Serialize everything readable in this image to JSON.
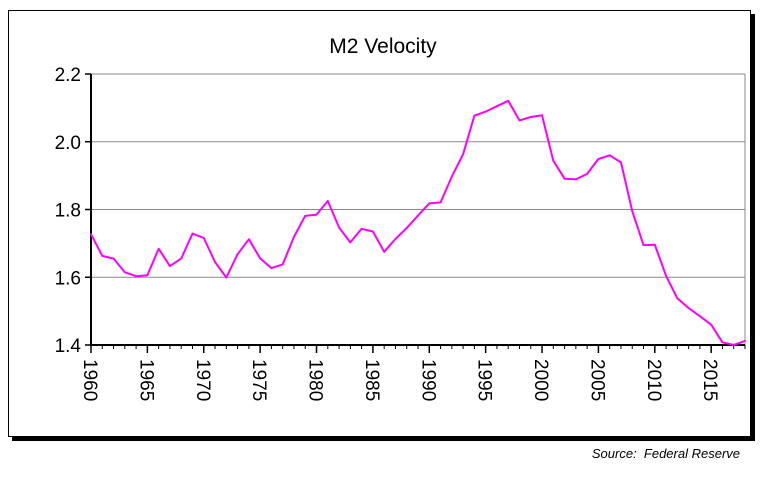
{
  "chart_data": {
    "type": "line",
    "title": "M2 Velocity",
    "xlabel": "",
    "ylabel": "",
    "ylim": [
      1.4,
      2.2
    ],
    "yticks": [
      "1.4",
      "1.6",
      "1.8",
      "2.0",
      "2.2"
    ],
    "xlim": [
      1960,
      2018
    ],
    "xticks": [
      "1960",
      "1965",
      "1970",
      "1975",
      "1980",
      "1985",
      "1990",
      "1995",
      "2000",
      "2005",
      "2010",
      "2015"
    ],
    "grid": true,
    "series": [
      {
        "color": "#ff00ff",
        "x": [
          1960,
          1961,
          1962,
          1963,
          1964,
          1965,
          1966,
          1967,
          1968,
          1969,
          1970,
          1971,
          1972,
          1973,
          1974,
          1975,
          1976,
          1977,
          1978,
          1979,
          1980,
          1981,
          1982,
          1983,
          1984,
          1985,
          1986,
          1987,
          1988,
          1989,
          1990,
          1991,
          1992,
          1993,
          1994,
          1995,
          1996,
          1997,
          1998,
          1999,
          2000,
          2001,
          2002,
          2003,
          2004,
          2005,
          2006,
          2007,
          2008,
          2009,
          2010,
          2011,
          2012,
          2013,
          2014,
          2015,
          2016,
          2017,
          2018
        ],
        "values": [
          1.727,
          1.663,
          1.655,
          1.615,
          1.603,
          1.606,
          1.684,
          1.633,
          1.655,
          1.729,
          1.716,
          1.645,
          1.599,
          1.668,
          1.712,
          1.656,
          1.627,
          1.638,
          1.719,
          1.781,
          1.785,
          1.825,
          1.747,
          1.703,
          1.743,
          1.735,
          1.675,
          1.713,
          1.745,
          1.782,
          1.818,
          1.821,
          1.897,
          1.963,
          2.077,
          2.089,
          2.105,
          2.121,
          2.063,
          2.073,
          2.078,
          1.944,
          1.891,
          1.889,
          1.905,
          1.949,
          1.96,
          1.939,
          1.796,
          1.695,
          1.696,
          1.604,
          1.538,
          1.509,
          1.485,
          1.46,
          1.408,
          1.4,
          1.412
        ]
      }
    ]
  },
  "source": "Source:  Federal Reserve"
}
